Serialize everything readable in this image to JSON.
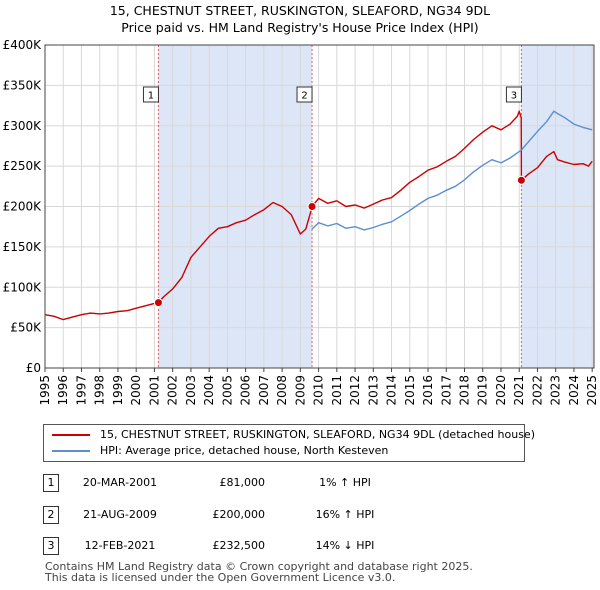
{
  "chart_data": {
    "type": "line",
    "title": "15, CHESTNUT STREET, RUSKINGTON, SLEAFORD, NG34 9DL",
    "subtitle": "Price paid vs. HM Land Registry's House Price Index (HPI)",
    "xlim": [
      1995,
      2025.1
    ],
    "ylim": [
      0,
      400000
    ],
    "x_ticks": [
      "1995",
      "1996",
      "1997",
      "1998",
      "1999",
      "2000",
      "2001",
      "2002",
      "2003",
      "2004",
      "2005",
      "2006",
      "2007",
      "2008",
      "2009",
      "2010",
      "2011",
      "2012",
      "2013",
      "2014",
      "2015",
      "2016",
      "2017",
      "2018",
      "2019",
      "2020",
      "2021",
      "2022",
      "2023",
      "2024",
      "2025"
    ],
    "y_ticks": [
      {
        "value": 0,
        "label": "£0"
      },
      {
        "value": 50000,
        "label": "£50K"
      },
      {
        "value": 100000,
        "label": "£100K"
      },
      {
        "value": 150000,
        "label": "£150K"
      },
      {
        "value": 200000,
        "label": "£200K"
      },
      {
        "value": 250000,
        "label": "£250K"
      },
      {
        "value": 300000,
        "label": "£300K"
      },
      {
        "value": 350000,
        "label": "£350K"
      },
      {
        "value": 400000,
        "label": "£400K"
      }
    ],
    "shaded_periods": [
      [
        2001.22,
        2009.64
      ],
      [
        2021.12,
        2025.1
      ]
    ],
    "grid": true,
    "series": [
      {
        "name": "15, CHESTNUT STREET, RUSKINGTON, SLEAFORD, NG34 9DL (detached house)",
        "color": "#cc0000",
        "x": [
          1995,
          1995.5,
          1996,
          1996.5,
          1997,
          1997.5,
          1998,
          1998.5,
          1999,
          1999.5,
          2000,
          2000.5,
          2001,
          2001.22,
          2001.5,
          2002,
          2002.5,
          2003,
          2003.5,
          2004,
          2004.5,
          2005,
          2005.5,
          2006,
          2006.5,
          2007,
          2007.5,
          2008,
          2008.5,
          2009,
          2009.3,
          2009.63,
          2009.64,
          2010,
          2010.5,
          2011,
          2011.5,
          2012,
          2012.5,
          2013,
          2013.5,
          2014,
          2014.5,
          2015,
          2015.5,
          2016,
          2016.5,
          2017,
          2017.5,
          2018,
          2018.5,
          2019,
          2019.5,
          2020,
          2020.5,
          2020.9,
          2021.0,
          2021.11,
          2021.12,
          2021.5,
          2022,
          2022.5,
          2022.9,
          2023.1,
          2023.5,
          2024,
          2024.5,
          2024.8,
          2025
        ],
        "y": [
          66000,
          64000,
          60000,
          63000,
          66000,
          68000,
          67000,
          68000,
          70000,
          71000,
          74000,
          77000,
          80000,
          81000,
          88000,
          98000,
          112000,
          137000,
          150000,
          163000,
          173000,
          175000,
          180000,
          183000,
          190000,
          196000,
          205000,
          200000,
          190000,
          166000,
          172000,
          198000,
          200000,
          210000,
          204000,
          207000,
          200000,
          202000,
          198000,
          203000,
          208000,
          211000,
          220000,
          230000,
          237000,
          245000,
          249000,
          256000,
          262000,
          272000,
          283000,
          292000,
          300000,
          295000,
          302000,
          312000,
          318000,
          310000,
          232500,
          240000,
          248000,
          262000,
          268000,
          258000,
          255000,
          252000,
          253000,
          250000,
          256000
        ]
      },
      {
        "name": "HPI: Average price, detached house, North Kesteven",
        "color": "#5b8fd0",
        "x": [
          2009.64,
          2010,
          2010.5,
          2011,
          2011.5,
          2012,
          2012.5,
          2013,
          2013.5,
          2014,
          2014.5,
          2015,
          2015.5,
          2016,
          2016.5,
          2017,
          2017.5,
          2018,
          2018.5,
          2019,
          2019.5,
          2020,
          2020.5,
          2021,
          2021.12,
          2021.5,
          2022,
          2022.5,
          2022.9,
          2023.1,
          2023.5,
          2024,
          2024.5,
          2025
        ],
        "y": [
          172000,
          180000,
          176000,
          179000,
          173000,
          175000,
          171000,
          174000,
          178000,
          181000,
          188000,
          195000,
          203000,
          210000,
          214000,
          220000,
          225000,
          233000,
          243000,
          251000,
          258000,
          254000,
          260000,
          268000,
          270000,
          280000,
          293000,
          305000,
          318000,
          315000,
          310000,
          302000,
          298000,
          295000
        ]
      }
    ],
    "sales": [
      {
        "num": "1",
        "x": 2001.22,
        "y": 81000
      },
      {
        "num": "2",
        "x": 2009.64,
        "y": 200000
      },
      {
        "num": "3",
        "x": 2021.12,
        "y": 232500
      }
    ]
  },
  "sales_table": [
    {
      "num": "1",
      "date": "20-MAR-2001",
      "price": "£81,000",
      "hpi": "1% ↑ HPI"
    },
    {
      "num": "2",
      "date": "21-AUG-2009",
      "price": "£200,000",
      "hpi": "16% ↑ HPI"
    },
    {
      "num": "3",
      "date": "12-FEB-2021",
      "price": "£232,500",
      "hpi": "14% ↓ HPI"
    }
  ],
  "footer": {
    "line1": "Contains HM Land Registry data © Crown copyright and database right 2025.",
    "line2": "This data is licensed under the Open Government Licence v3.0."
  }
}
